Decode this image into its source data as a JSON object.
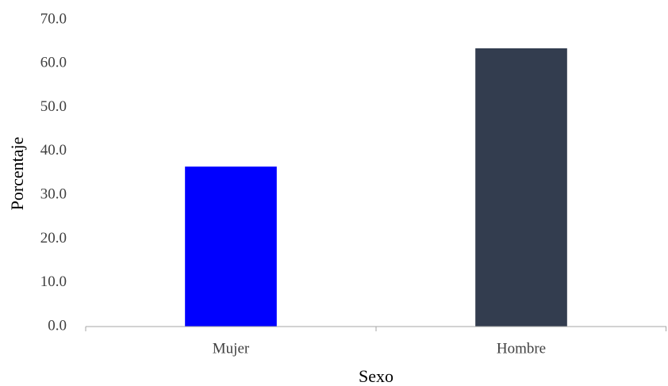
{
  "chart_data": {
    "type": "bar",
    "x_label": "Sexo",
    "y_label": "Porcentaje",
    "categories": [
      "Mujer",
      "Hombre"
    ],
    "values": [
      36.5,
      63.5
    ],
    "colors": [
      "#0000ff",
      "#333d4f"
    ],
    "ylim": [
      0,
      70
    ],
    "yticks": [
      {
        "value": 0,
        "label": "0.0"
      },
      {
        "value": 10,
        "label": "10.0"
      },
      {
        "value": 20,
        "label": "20.0"
      },
      {
        "value": 30,
        "label": "30.0"
      },
      {
        "value": 40,
        "label": "40.0"
      },
      {
        "value": 50,
        "label": "50.0"
      },
      {
        "value": 60,
        "label": "60.0"
      },
      {
        "value": 70,
        "label": "70.0"
      }
    ],
    "grid": false
  }
}
